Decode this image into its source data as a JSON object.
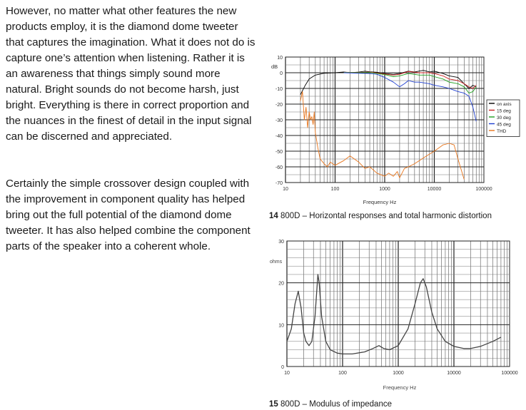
{
  "text": {
    "paragraph1": "However, no matter what other features the new products employ, it is the diamond dome tweeter that captures the imagination. What it does not do is capture one’s attention when listening. Rather it is an awareness that things simply sound more natural. Bright sounds do not become harsh, just bright. Everything is there in correct proportion and the nuances in the finest of detail in the input signal can be discerned and appreciated.",
    "paragraph2": "Certainly the simple crossover design coupled with the improvement in component quality has helped bring out the full potential of the diamond dome tweeter. It has also helped combine the component parts of the speaker into a coherent whole."
  },
  "figures": {
    "fig14": {
      "number": "14",
      "caption": "800D – Horizontal responses and total harmonic distortion"
    },
    "fig15": {
      "number": "15",
      "caption": "800D – Modulus of impedance"
    }
  },
  "chart_data": [
    {
      "type": "line",
      "xscale": "log",
      "xlim": [
        10,
        100000
      ],
      "ylim": [
        -70,
        10
      ],
      "xlabel": "Frequency Hz",
      "ylabel": "dB",
      "xticks": [
        "10",
        "100",
        "1000",
        "10000",
        "100000"
      ],
      "yticks": [
        "10",
        "0",
        "-10",
        "-20",
        "-30",
        "-40",
        "-50",
        "-60",
        "-70"
      ],
      "grid": true,
      "legend_position": "right",
      "series": [
        {
          "name": "on axis",
          "color": "#000000",
          "points": [
            [
              20,
              -14
            ],
            [
              25,
              -8
            ],
            [
              30,
              -4
            ],
            [
              40,
              -1.5
            ],
            [
              60,
              -0.3
            ],
            [
              100,
              0
            ],
            [
              150,
              0.5
            ],
            [
              200,
              0
            ],
            [
              300,
              0.4
            ],
            [
              400,
              1
            ],
            [
              500,
              0.6
            ],
            [
              700,
              0.3
            ],
            [
              1000,
              -0.5
            ],
            [
              1500,
              -1
            ],
            [
              2000,
              -0.5
            ],
            [
              3000,
              1
            ],
            [
              4000,
              0.5
            ],
            [
              6000,
              1.5
            ],
            [
              8000,
              0.5
            ],
            [
              10000,
              1
            ],
            [
              15000,
              -0.5
            ],
            [
              20000,
              -2
            ],
            [
              30000,
              -3
            ],
            [
              40000,
              -7
            ],
            [
              50000,
              -10
            ],
            [
              60000,
              -8
            ],
            [
              70000,
              -9
            ]
          ]
        },
        {
          "name": "15 deg",
          "color": "#cc2222",
          "points": [
            [
              150,
              0.3
            ],
            [
              300,
              0.2
            ],
            [
              500,
              0.4
            ],
            [
              1000,
              -0.8
            ],
            [
              1500,
              -1.5
            ],
            [
              2000,
              -1
            ],
            [
              3000,
              0.8
            ],
            [
              5000,
              0
            ],
            [
              8000,
              0
            ],
            [
              10000,
              -0.5
            ],
            [
              15000,
              -2
            ],
            [
              20000,
              -4
            ],
            [
              30000,
              -5
            ],
            [
              40000,
              -7
            ],
            [
              50000,
              -9
            ],
            [
              60000,
              -10
            ],
            [
              70000,
              -8
            ]
          ]
        },
        {
          "name": "30 deg",
          "color": "#22a022",
          "points": [
            [
              150,
              0.2
            ],
            [
              300,
              0
            ],
            [
              500,
              0.2
            ],
            [
              1000,
              -1.2
            ],
            [
              1500,
              -2.5
            ],
            [
              2000,
              -2
            ],
            [
              3000,
              -0.5
            ],
            [
              5000,
              -1.5
            ],
            [
              8000,
              -1.5
            ],
            [
              10000,
              -2.5
            ],
            [
              15000,
              -4
            ],
            [
              20000,
              -6
            ],
            [
              30000,
              -7
            ],
            [
              40000,
              -9
            ],
            [
              50000,
              -13
            ],
            [
              60000,
              -12
            ],
            [
              70000,
              -9
            ]
          ]
        },
        {
          "name": "45 deg",
          "color": "#1f3fd1",
          "points": [
            [
              150,
              0
            ],
            [
              300,
              -0.3
            ],
            [
              500,
              -0.5
            ],
            [
              700,
              -1
            ],
            [
              1000,
              -3
            ],
            [
              1500,
              -6
            ],
            [
              2000,
              -9
            ],
            [
              2500,
              -7
            ],
            [
              3000,
              -5
            ],
            [
              4000,
              -6
            ],
            [
              5000,
              -6
            ],
            [
              8000,
              -7
            ],
            [
              10000,
              -8
            ],
            [
              15000,
              -9
            ],
            [
              20000,
              -10
            ],
            [
              30000,
              -12
            ],
            [
              40000,
              -13
            ],
            [
              50000,
              -15
            ],
            [
              60000,
              -22
            ],
            [
              70000,
              -31
            ]
          ]
        },
        {
          "name": "THD",
          "color": "#e8741a",
          "points": [
            [
              20,
              -18
            ],
            [
              22,
              -12
            ],
            [
              24,
              -30
            ],
            [
              26,
              -22
            ],
            [
              28,
              -35
            ],
            [
              30,
              -25
            ],
            [
              32,
              -30
            ],
            [
              34,
              -28
            ],
            [
              36,
              -33
            ],
            [
              38,
              -25
            ],
            [
              40,
              -38
            ],
            [
              45,
              -48
            ],
            [
              50,
              -55
            ],
            [
              60,
              -58
            ],
            [
              70,
              -60
            ],
            [
              80,
              -57
            ],
            [
              100,
              -59
            ],
            [
              150,
              -56
            ],
            [
              200,
              -53
            ],
            [
              300,
              -57
            ],
            [
              400,
              -61
            ],
            [
              500,
              -60
            ],
            [
              700,
              -64
            ],
            [
              1000,
              -66
            ],
            [
              1200,
              -64
            ],
            [
              1500,
              -66
            ],
            [
              1800,
              -63
            ],
            [
              2000,
              -67
            ],
            [
              2500,
              -61
            ],
            [
              3000,
              -60
            ],
            [
              4000,
              -58
            ],
            [
              5000,
              -56
            ],
            [
              7000,
              -53
            ],
            [
              10000,
              -50
            ],
            [
              15000,
              -46
            ],
            [
              20000,
              -45
            ],
            [
              25000,
              -46
            ],
            [
              30000,
              -55
            ],
            [
              40000,
              -68
            ]
          ]
        }
      ]
    },
    {
      "type": "line",
      "xscale": "log",
      "xlim": [
        10,
        100000
      ],
      "ylim": [
        0,
        30
      ],
      "xlabel": "Frequency Hz",
      "ylabel": "ohms",
      "xticks": [
        "10",
        "100",
        "1000",
        "10000",
        "100000"
      ],
      "yticks": [
        "30",
        "20",
        "10",
        "0"
      ],
      "grid": true,
      "series": [
        {
          "color": "#444444",
          "points": [
            [
              10,
              6
            ],
            [
              12,
              9
            ],
            [
              14,
              15
            ],
            [
              16,
              18
            ],
            [
              18,
              14
            ],
            [
              20,
              8
            ],
            [
              22,
              6
            ],
            [
              25,
              5
            ],
            [
              28,
              6
            ],
            [
              32,
              12
            ],
            [
              36,
              22
            ],
            [
              38,
              20
            ],
            [
              42,
              12
            ],
            [
              50,
              6
            ],
            [
              60,
              4
            ],
            [
              80,
              3.2
            ],
            [
              100,
              3
            ],
            [
              150,
              3
            ],
            [
              250,
              3.5
            ],
            [
              350,
              4.3
            ],
            [
              450,
              5
            ],
            [
              550,
              4.3
            ],
            [
              700,
              4
            ],
            [
              1000,
              5
            ],
            [
              1500,
              9
            ],
            [
              2000,
              15
            ],
            [
              2500,
              20
            ],
            [
              2800,
              21
            ],
            [
              3200,
              19
            ],
            [
              4000,
              13
            ],
            [
              5000,
              9
            ],
            [
              7000,
              6
            ],
            [
              10000,
              4.8
            ],
            [
              15000,
              4.3
            ],
            [
              20000,
              4.3
            ],
            [
              30000,
              4.8
            ],
            [
              50000,
              6
            ],
            [
              70000,
              7
            ]
          ]
        }
      ]
    }
  ]
}
